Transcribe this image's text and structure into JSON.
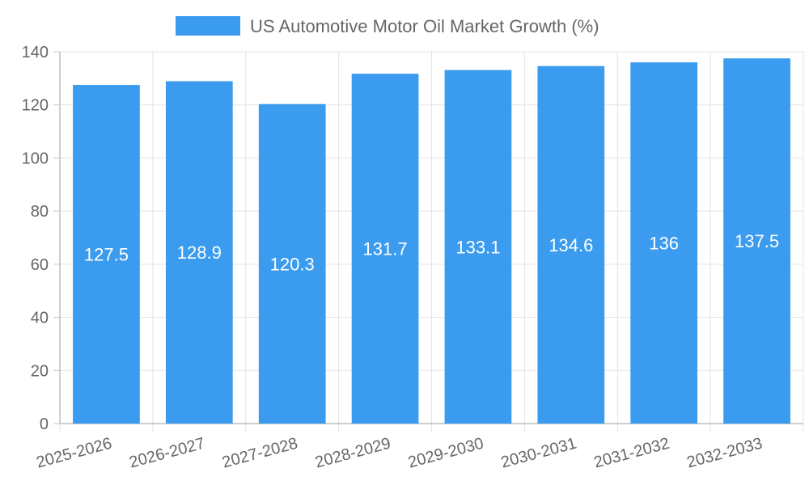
{
  "chart_data": {
    "type": "bar",
    "categories": [
      "2025-2026",
      "2026-2027",
      "2027-2028",
      "2028-2029",
      "2029-2030",
      "2030-2031",
      "2031-2032",
      "2032-2033"
    ],
    "series": [
      {
        "name": "US Automotive Motor Oil Market Growth (%)",
        "values": [
          127.5,
          128.9,
          120.3,
          131.7,
          133.1,
          134.6,
          136,
          137.5
        ],
        "color": "#3A9BEF"
      }
    ],
    "data_labels": [
      "127.5",
      "128.9",
      "120.3",
      "131.7",
      "133.1",
      "134.6",
      "136",
      "137.5"
    ],
    "y_ticks": [
      "0",
      "20",
      "40",
      "60",
      "80",
      "100",
      "120",
      "140"
    ],
    "ylim": [
      0,
      140
    ],
    "grid": true,
    "legend_position": "top"
  }
}
